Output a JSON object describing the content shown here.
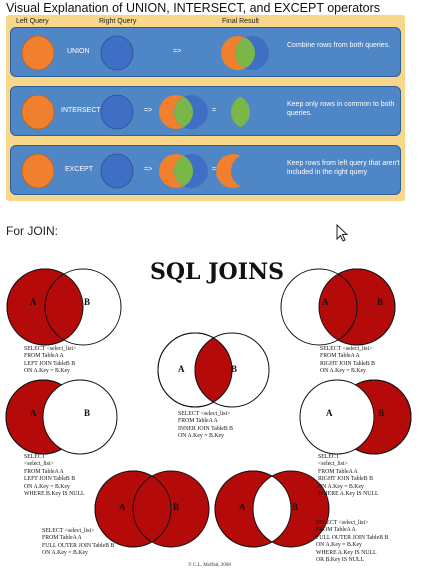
{
  "page_title": "Visual Explanation of UNION, INTERSECT, and EXCEPT operators",
  "headers": {
    "left": "Left Query",
    "right": "Right Query",
    "result": "Final Result"
  },
  "operators": [
    {
      "name": "UNION",
      "arrow": "=>",
      "equals": "",
      "description": "Combine rows from both queries."
    },
    {
      "name": "INTERSECT",
      "arrow": "=>",
      "equals": "=",
      "description": "Keep only rows in common to both queries."
    },
    {
      "name": "EXCEPT",
      "arrow": "=>",
      "equals": "=",
      "description": "Keep rows from left query that aren't included in the right query"
    }
  ],
  "join_heading": "For JOIN:",
  "sql_joins": {
    "title": "SQL JOINS",
    "label_a": "A",
    "label_b": "B",
    "copyright": "© C.L. Moffatt, 2008",
    "queries": {
      "left": "SELECT <select_list>\nFROM TableA A\nLEFT JOIN TableB B\nON A.Key = B.Key",
      "right": "SELECT <select_list>\nFROM TableA A\nRIGHT JOIN TableB B\nON A.Key = B.Key",
      "inner": "SELECT <select_list>\nFROM TableA A\nINNER JOIN TableB B\nON A.Key = B.Key",
      "left_null": "SELECT\n<select_list>\nFROM TableA A\nLEFT JOIN TableB B\nON A.Key = B.Key\nWHERE B.Key IS NULL",
      "right_null": "SELECT\n<select_list>\nFROM TableA A\nRIGHT JOIN TableB B\nON A.Key = B.Key\nWHERE A.Key IS NULL",
      "full": "SELECT <select_list>\nFROM TableA A\nFULL OUTER JOIN TableB B\nON A.Key = B.Key",
      "full_null": "SELECT <select_list>\nFROM TableA A\nFULL OUTER JOIN TableB B\nON A.Key = B.Key\nWHERE A.Key IS NULL\nOR B.Key IS NULL"
    }
  },
  "colors": {
    "panel": "#f8d68a",
    "row": "#4f86c6",
    "left_set": "#f07f2e",
    "right_set": "#3e6fc4",
    "intersection": "#7ab648",
    "join_fill": "#b50a0a"
  }
}
